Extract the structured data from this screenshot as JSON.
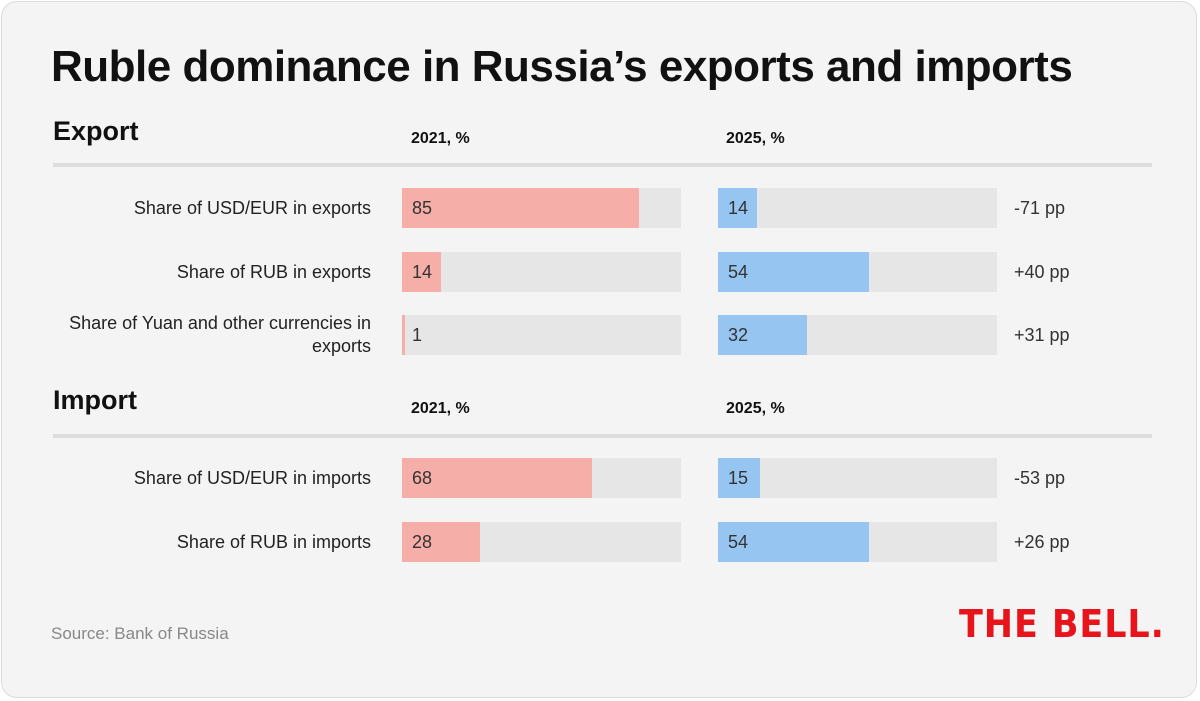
{
  "title": "Ruble dominance in Russia’s exports and imports",
  "source": "Source: Bank of Russia",
  "logo": "THE BELL.",
  "colors": {
    "bar_2021": "#f6afa8",
    "bar_2025": "#95c5f0",
    "track": "#e6e6e6",
    "logo": "#e8141c"
  },
  "chart_data": [
    {
      "type": "bar",
      "section": "Export",
      "columns": [
        "2021, %",
        "2025, %"
      ],
      "xlim": [
        0,
        100
      ],
      "rows": [
        {
          "label": "Share of USD/EUR in exports",
          "v2021": 85,
          "v2025": 14,
          "change": "-71 pp"
        },
        {
          "label": "Share of RUB in exports",
          "v2021": 14,
          "v2025": 54,
          "change": "+40 pp"
        },
        {
          "label": "Share of Yuan and other currencies in exports",
          "v2021": 1,
          "v2025": 32,
          "change": "+31 pp"
        }
      ]
    },
    {
      "type": "bar",
      "section": "Import",
      "columns": [
        "2021, %",
        "2025, %"
      ],
      "xlim": [
        0,
        100
      ],
      "rows": [
        {
          "label": "Share of USD/EUR in imports",
          "v2021": 68,
          "v2025": 15,
          "change": "-53 pp"
        },
        {
          "label": "Share of RUB in imports",
          "v2021": 28,
          "v2025": 54,
          "change": "+26 pp"
        }
      ]
    }
  ]
}
